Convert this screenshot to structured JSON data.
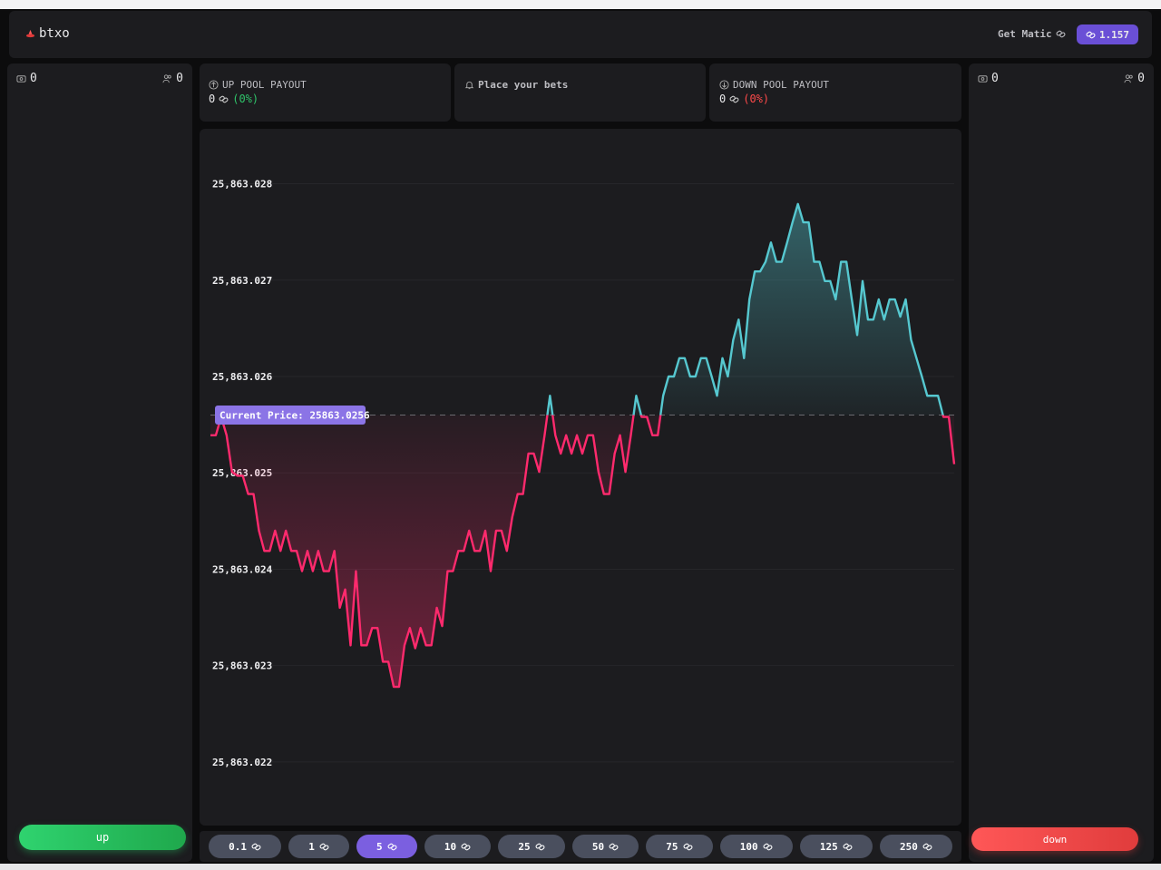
{
  "header": {
    "logo": "btxo",
    "get_matic": "Get Matic",
    "balance": "1.157"
  },
  "left_panel": {
    "wallet_count": "0",
    "players_count": "0",
    "button": "up"
  },
  "right_panel": {
    "wallet_count": "0",
    "players_count": "0",
    "button": "down"
  },
  "pools": {
    "up": {
      "title": "UP POOL PAYOUT",
      "amount": "0",
      "percent": "(0%)"
    },
    "status": "Place your bets",
    "down": {
      "title": "DOWN POOL PAYOUT",
      "amount": "0",
      "percent": "(0%)"
    }
  },
  "chart_data": {
    "type": "line",
    "ylim": [
      25863.02134,
      25863.02857
    ],
    "yticks": [
      {
        "value": 25863.028,
        "label": "25,863.028"
      },
      {
        "value": 25863.027,
        "label": "25,863.027"
      },
      {
        "value": 25863.026,
        "label": "25,863.026"
      },
      {
        "value": 25863.025,
        "label": "25,863.025"
      },
      {
        "value": 25863.024,
        "label": "25,863.024"
      },
      {
        "value": 25863.023,
        "label": "25,863.023"
      },
      {
        "value": 25863.022,
        "label": "25,863.022"
      }
    ],
    "grid": true,
    "up_color": "#56c8d0",
    "down_color": "#ff2a6d",
    "current_price": {
      "value": 25863.0256,
      "label": "Current Price: 25863.0256"
    },
    "values": [
      25863.02539,
      25863.02539,
      25863.02558,
      25863.02539,
      25863.02501,
      25863.02497,
      25863.02497,
      25863.02478,
      25863.02478,
      25863.0244,
      25863.02419,
      25863.02419,
      25863.0244,
      25863.02419,
      25863.0244,
      25863.02419,
      25863.02419,
      25863.02398,
      25863.02419,
      25863.02398,
      25863.02419,
      25863.02398,
      25863.02398,
      25863.02419,
      25863.0236,
      25863.02379,
      25863.02321,
      25863.02398,
      25863.02321,
      25863.02321,
      25863.02339,
      25863.02339,
      25863.02304,
      25863.02304,
      25863.02278,
      25863.02278,
      25863.02321,
      25863.02339,
      25863.02318,
      25863.02339,
      25863.02321,
      25863.02321,
      25863.0236,
      25863.02341,
      25863.02398,
      25863.02398,
      25863.02419,
      25863.02419,
      25863.0244,
      25863.02419,
      25863.02419,
      25863.0244,
      25863.02398,
      25863.0244,
      25863.0244,
      25863.02419,
      25863.02454,
      25863.02478,
      25863.02478,
      25863.0252,
      25863.0252,
      25863.02501,
      25863.02539,
      25863.0258,
      25863.02539,
      25863.0252,
      25863.02539,
      25863.0252,
      25863.02539,
      25863.0252,
      25863.02539,
      25863.02539,
      25863.02501,
      25863.02478,
      25863.02478,
      25863.0252,
      25863.02539,
      25863.02501,
      25863.02539,
      25863.0258,
      25863.02558,
      25863.02558,
      25863.02539,
      25863.02539,
      25863.0258,
      25863.026,
      25863.026,
      25863.02619,
      25863.02619,
      25863.026,
      25863.026,
      25863.02619,
      25863.02619,
      25863.026,
      25863.0258,
      25863.02619,
      25863.026,
      25863.02638,
      25863.02659,
      25863.02619,
      25863.0268,
      25863.02709,
      25863.02709,
      25863.02719,
      25863.02739,
      25863.02719,
      25863.02719,
      25863.02739,
      25863.0276,
      25863.02779,
      25863.0276,
      25863.0276,
      25863.02719,
      25863.02719,
      25863.02699,
      25863.02699,
      25863.0268,
      25863.02719,
      25863.02719,
      25863.0268,
      25863.02643,
      25863.02699,
      25863.02659,
      25863.02659,
      25863.0268,
      25863.02659,
      25863.0268,
      25863.0268,
      25863.02662,
      25863.0268,
      25863.02638,
      25863.02619,
      25863.026,
      25863.0258,
      25863.0258,
      25863.0258,
      25863.02558,
      25863.02558,
      25863.02509
    ]
  },
  "bets": [
    {
      "amount": "0.1",
      "selected": false
    },
    {
      "amount": "1",
      "selected": false
    },
    {
      "amount": "5",
      "selected": true
    },
    {
      "amount": "10",
      "selected": false
    },
    {
      "amount": "25",
      "selected": false
    },
    {
      "amount": "50",
      "selected": false
    },
    {
      "amount": "75",
      "selected": false
    },
    {
      "amount": "100",
      "selected": false
    },
    {
      "amount": "125",
      "selected": false
    },
    {
      "amount": "250",
      "selected": false
    }
  ]
}
